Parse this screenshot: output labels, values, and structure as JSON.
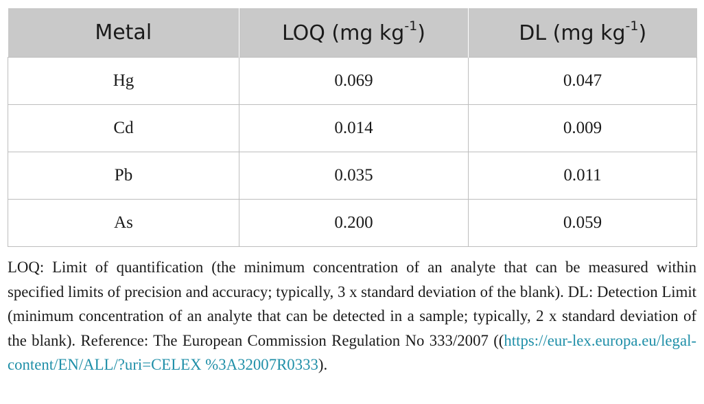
{
  "table": {
    "headers": {
      "metal": "Metal",
      "loq_prefix": "LOQ (mg kg",
      "loq_sup": "-1",
      "loq_suffix": ")",
      "dl_prefix": "DL (mg kg",
      "dl_sup": "-1",
      "dl_suffix": ")"
    },
    "rows": [
      {
        "metal": "Hg",
        "loq": "0.069",
        "dl": "0.047"
      },
      {
        "metal": "Cd",
        "loq": "0.014",
        "dl": "0.009"
      },
      {
        "metal": "Pb",
        "loq": "0.035",
        "dl": "0.011"
      },
      {
        "metal": "As",
        "loq": "0.200",
        "dl": "0.059"
      }
    ]
  },
  "footnote": {
    "text_before_link": "LOQ: Limit of quantification (the minimum concentration of an analyte that can be measured within specified limits of precision and accuracy; typically, 3 x standard deviation of the blank). DL: Detection Limit (minimum concentration of an analyte that can be detected in a sample; typically, 2 x standard deviation of the blank). Reference: The European Commission Regulation No 333/2007 ((",
    "link_text": "https://eur-lex.europa.eu/legal-content/EN/ALL/?uri=CELEX %3A32007R0333",
    "text_after_link": ")."
  },
  "colors": {
    "header_bg": "#c9c9c9",
    "border": "#bdbdbd",
    "link": "#1f8fa8"
  }
}
